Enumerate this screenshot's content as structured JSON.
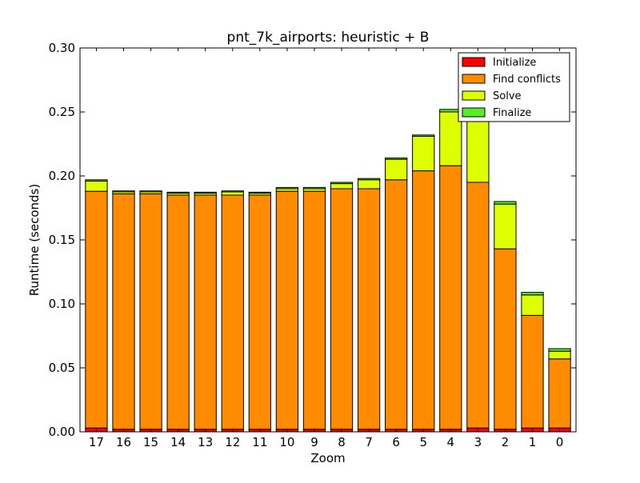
{
  "chart_data": {
    "type": "bar",
    "stacked": true,
    "title": "pnt_7k_airports: heuristic + B",
    "xlabel": "Zoom",
    "ylabel": "Runtime (seconds)",
    "ylim": [
      0,
      0.3
    ],
    "yticks": [
      "0.00",
      "0.05",
      "0.10",
      "0.15",
      "0.20",
      "0.25",
      "0.30"
    ],
    "grid": false,
    "legend_position": "top-right",
    "categories": [
      "17",
      "16",
      "15",
      "14",
      "13",
      "12",
      "11",
      "10",
      "9",
      "8",
      "7",
      "6",
      "5",
      "4",
      "3",
      "2",
      "1",
      "0"
    ],
    "series": [
      {
        "name": "Initialize",
        "color": "#ff0000",
        "values": [
          0.003,
          0.002,
          0.002,
          0.002,
          0.002,
          0.002,
          0.002,
          0.002,
          0.002,
          0.002,
          0.002,
          0.002,
          0.002,
          0.002,
          0.003,
          0.002,
          0.003,
          0.003
        ]
      },
      {
        "name": "Find conflicts",
        "color": "#ff8c00",
        "values": [
          0.185,
          0.184,
          0.184,
          0.183,
          0.183,
          0.183,
          0.183,
          0.186,
          0.186,
          0.188,
          0.188,
          0.195,
          0.202,
          0.206,
          0.192,
          0.141,
          0.088,
          0.054
        ]
      },
      {
        "name": "Solve",
        "color": "#ddff00",
        "values": [
          0.008,
          0.0015,
          0.0015,
          0.0015,
          0.0015,
          0.0025,
          0.0015,
          0.002,
          0.002,
          0.004,
          0.007,
          0.016,
          0.027,
          0.042,
          0.054,
          0.035,
          0.016,
          0.006
        ]
      },
      {
        "name": "Finalize",
        "color": "#55ee22",
        "values": [
          0.001,
          0.0008,
          0.0008,
          0.0008,
          0.0008,
          0.0008,
          0.0008,
          0.001,
          0.001,
          0.001,
          0.001,
          0.001,
          0.001,
          0.002,
          0.002,
          0.002,
          0.002,
          0.002
        ]
      }
    ]
  }
}
